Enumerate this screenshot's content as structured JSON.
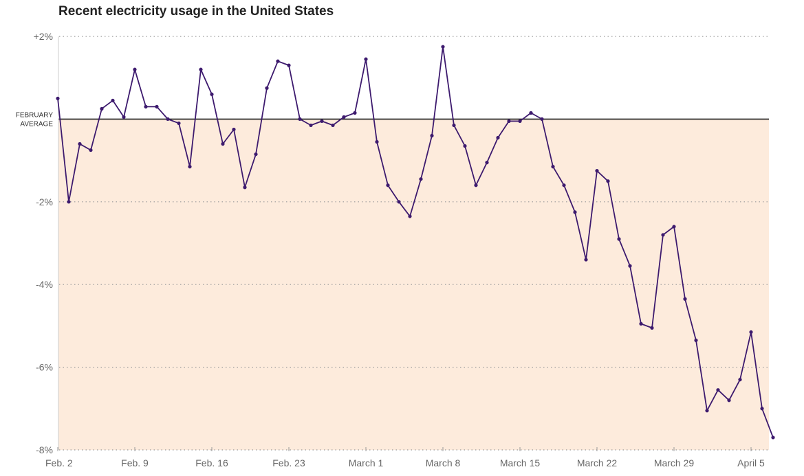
{
  "chart_data": {
    "type": "line",
    "title": "Recent electricity usage in the United States",
    "xlabel": "",
    "ylabel": "",
    "ylim": [
      -8,
      2
    ],
    "y_ticks": [
      "+2%",
      "-2%",
      "-4%",
      "-6%",
      "-8%"
    ],
    "y_tick_values": [
      2,
      -2,
      -4,
      -6,
      -8
    ],
    "x_tick_labels": [
      "Feb. 2",
      "Feb. 9",
      "Feb. 16",
      "Feb. 23",
      "March 1",
      "March 8",
      "March 15",
      "March 22",
      "March 29",
      "April 5"
    ],
    "reference_line": {
      "value": 0,
      "label_line1": "FEBRUARY",
      "label_line2": "AVERAGE"
    },
    "grid": "dotted horizontal",
    "colors": {
      "line": "#3d1a6e",
      "shade": "#fdebdc",
      "reference": "#222222",
      "grid": "#999999"
    },
    "series": [
      {
        "x": [
          "Feb. 2",
          "Feb. 3",
          "Feb. 4",
          "Feb. 5",
          "Feb. 6",
          "Feb. 7",
          "Feb. 8",
          "Feb. 9",
          "Feb. 10",
          "Feb. 11",
          "Feb. 12",
          "Feb. 13",
          "Feb. 14",
          "Feb. 15",
          "Feb. 16",
          "Feb. 17",
          "Feb. 18",
          "Feb. 19",
          "Feb. 20",
          "Feb. 21",
          "Feb. 22",
          "Feb. 23",
          "Feb. 24",
          "Feb. 25",
          "Feb. 26",
          "Feb. 27",
          "Feb. 28",
          "Feb. 29",
          "March 1",
          "March 2",
          "March 3",
          "March 4",
          "March 5",
          "March 6",
          "March 7",
          "March 8",
          "March 9",
          "March 10",
          "March 11",
          "March 12",
          "March 13",
          "March 14",
          "March 15",
          "March 16",
          "March 17",
          "March 18",
          "March 19",
          "March 20",
          "March 21",
          "March 22",
          "March 23",
          "March 24",
          "March 25",
          "March 26",
          "March 27",
          "March 28",
          "March 29",
          "March 30",
          "March 31",
          "April 1",
          "April 2",
          "April 3",
          "April 4",
          "April 5",
          "April 6",
          "April 7"
        ],
        "values": [
          0.5,
          -2.0,
          -0.6,
          -0.75,
          0.25,
          0.45,
          0.05,
          1.2,
          0.3,
          0.3,
          0.0,
          -0.1,
          -1.15,
          1.2,
          0.6,
          -0.6,
          -0.25,
          -1.65,
          -0.85,
          0.75,
          1.4,
          1.3,
          0.0,
          -0.15,
          -0.05,
          -0.15,
          0.05,
          0.15,
          1.45,
          -0.55,
          -1.6,
          -2.0,
          -2.35,
          -1.45,
          -0.4,
          1.75,
          -0.15,
          -0.65,
          -1.6,
          -1.05,
          -0.45,
          -0.05,
          -0.05,
          0.15,
          0.0,
          -1.15,
          -1.6,
          -2.25,
          -3.4,
          -1.25,
          -1.5,
          -2.9,
          -3.55,
          -4.95,
          -5.05,
          -2.8,
          -2.6,
          -4.35,
          -5.35,
          -7.05,
          -6.55,
          -6.8,
          -6.3,
          -5.15,
          -7.0,
          -7.7
        ]
      }
    ]
  }
}
